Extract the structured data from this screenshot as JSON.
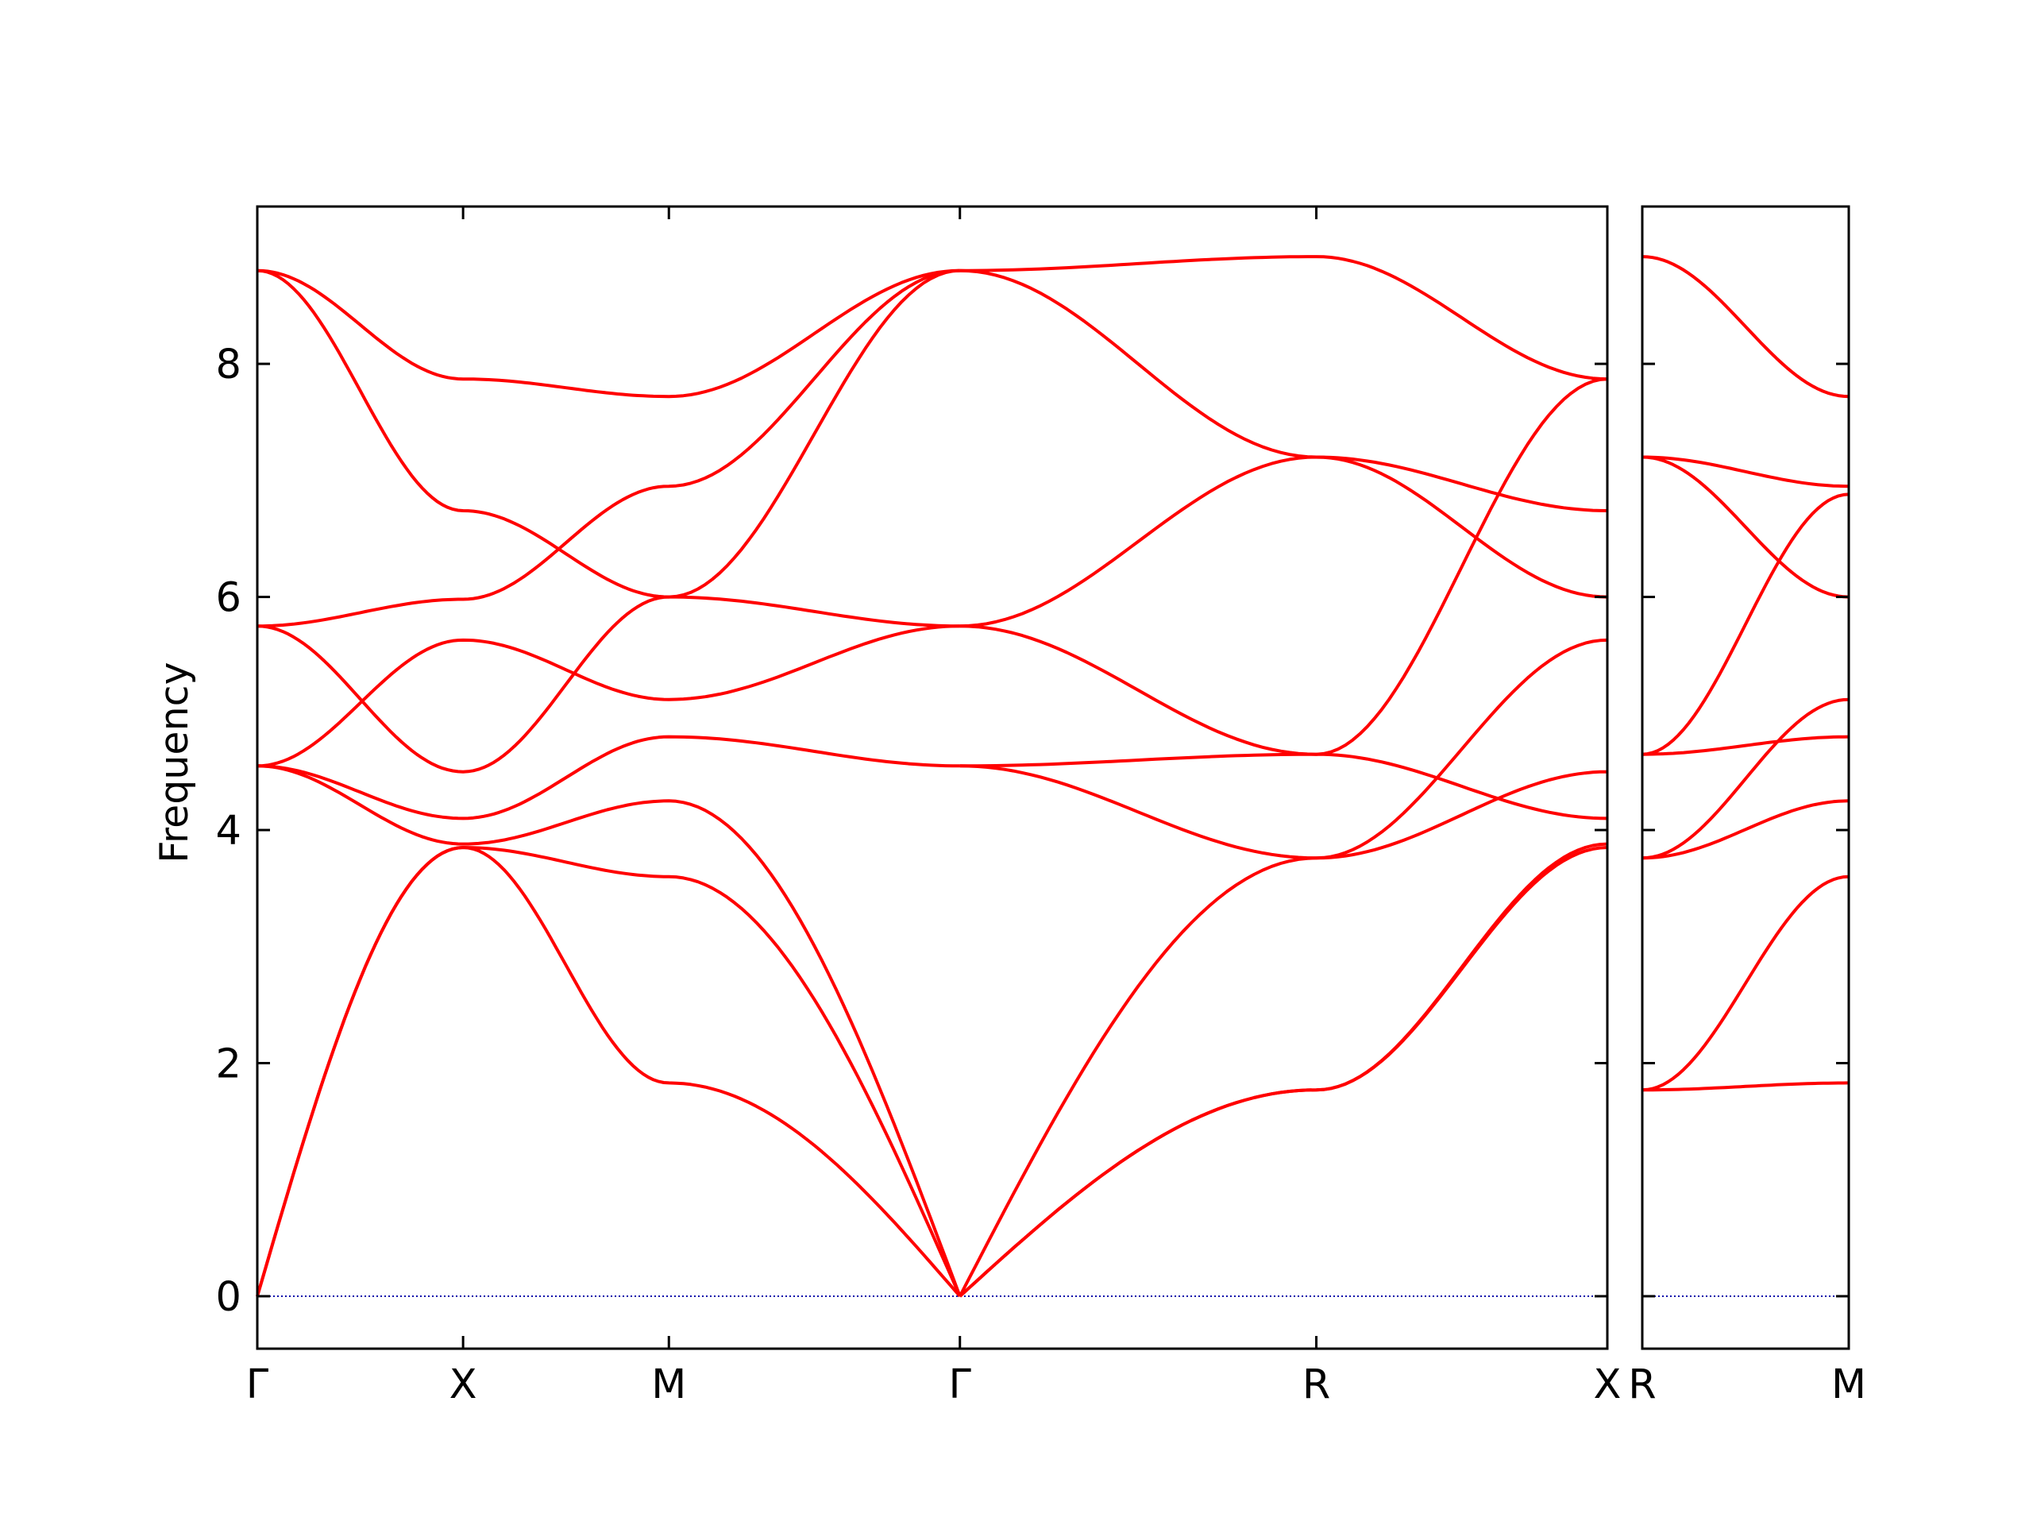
{
  "chart_data": {
    "type": "line",
    "ylabel": "Frequency",
    "ylim": [
      -0.45,
      9.35
    ],
    "yticks": [
      0,
      2,
      4,
      6,
      8
    ],
    "grid": false,
    "legend": "none",
    "colors": {
      "bands": "#ff0000",
      "zero_line": "#0000aa",
      "axes": "#000000"
    },
    "panels": [
      {
        "xticks": [
          {
            "label": "Γ",
            "x": 0
          },
          {
            "label": "X",
            "x": 0.5
          },
          {
            "label": "M",
            "x": 1.0
          },
          {
            "label": "Γ",
            "x": 1.7071
          },
          {
            "label": "R",
            "x": 2.5731
          },
          {
            "label": "X",
            "x": 3.2802
          }
        ],
        "xlim": [
          0,
          3.2802
        ],
        "series": [
          {
            "points": [
              [
                0,
                8.8
              ],
              [
                0.5,
                7.87
              ],
              [
                1.0,
                7.72
              ],
              [
                1.7071,
                8.8
              ]
            ]
          },
          {
            "points": [
              [
                0,
                8.8
              ],
              [
                0.5,
                6.74
              ],
              [
                1.0,
                6.0
              ],
              [
                1.7071,
                8.8
              ]
            ]
          },
          {
            "points": [
              [
                0,
                5.75
              ],
              [
                0.5,
                5.98
              ],
              [
                1.0,
                6.95
              ],
              [
                1.7071,
                8.8
              ]
            ]
          },
          {
            "points": [
              [
                0,
                5.75
              ],
              [
                0.5,
                4.5
              ],
              [
                1.0,
                6.0
              ],
              [
                1.7071,
                5.75
              ]
            ]
          },
          {
            "points": [
              [
                0,
                4.55
              ],
              [
                0.5,
                5.63
              ],
              [
                1.0,
                5.12
              ],
              [
                1.7071,
                5.75
              ]
            ]
          },
          {
            "points": [
              [
                0,
                4.55
              ],
              [
                0.5,
                4.1
              ],
              [
                1.0,
                4.8
              ],
              [
                1.7071,
                4.55
              ]
            ]
          },
          {
            "points": [
              [
                0,
                4.55
              ],
              [
                0.5,
                3.88
              ],
              [
                1.0,
                4.25
              ],
              [
                1.7071,
                0
              ]
            ]
          },
          {
            "points": [
              [
                0,
                0
              ],
              [
                0.5,
                3.85
              ],
              [
                1.0,
                3.6
              ],
              [
                1.7071,
                0
              ]
            ]
          },
          {
            "points": [
              [
                0,
                0
              ],
              [
                0.5,
                3.85
              ],
              [
                1.0,
                1.83
              ],
              [
                1.7071,
                0
              ]
            ]
          },
          {
            "points": [
              [
                1.7071,
                8.8
              ],
              [
                2.5731,
                8.92
              ],
              [
                3.2802,
                7.87
              ]
            ]
          },
          {
            "points": [
              [
                1.7071,
                8.8
              ],
              [
                2.5731,
                7.2
              ],
              [
                3.2802,
                6.0
              ]
            ]
          },
          {
            "points": [
              [
                1.7071,
                5.75
              ],
              [
                2.5731,
                7.2
              ],
              [
                3.2802,
                6.74
              ]
            ]
          },
          {
            "points": [
              [
                1.7071,
                5.75
              ],
              [
                2.5731,
                4.65
              ],
              [
                3.2802,
                4.1
              ]
            ]
          },
          {
            "points": [
              [
                1.7071,
                4.55
              ],
              [
                2.5731,
                4.65
              ],
              [
                3.2802,
                7.87
              ]
            ]
          },
          {
            "points": [
              [
                1.7071,
                4.55
              ],
              [
                2.5731,
                3.76
              ],
              [
                3.2802,
                5.63
              ]
            ]
          },
          {
            "points": [
              [
                1.7071,
                0
              ],
              [
                2.5731,
                3.76
              ],
              [
                3.2802,
                4.5
              ]
            ]
          },
          {
            "points": [
              [
                1.7071,
                0
              ],
              [
                2.5731,
                1.77
              ],
              [
                3.2802,
                3.88
              ]
            ]
          },
          {
            "points": [
              [
                1.7071,
                0
              ],
              [
                2.5731,
                1.77
              ],
              [
                3.2802,
                3.85
              ]
            ]
          }
        ]
      },
      {
        "xticks": [
          {
            "label": "R",
            "x": 0
          },
          {
            "label": "M",
            "x": 0.5
          }
        ],
        "xlim": [
          0,
          0.5
        ],
        "series": [
          {
            "points": [
              [
                0,
                8.92
              ],
              [
                0.5,
                7.72
              ]
            ]
          },
          {
            "points": [
              [
                0,
                7.2
              ],
              [
                0.5,
                6.95
              ]
            ]
          },
          {
            "points": [
              [
                0,
                7.2
              ],
              [
                0.5,
                6.0
              ]
            ]
          },
          {
            "points": [
              [
                0,
                4.65
              ],
              [
                0.5,
                6.88
              ]
            ]
          },
          {
            "points": [
              [
                0,
                4.65
              ],
              [
                0.5,
                4.8
              ]
            ]
          },
          {
            "points": [
              [
                0,
                3.76
              ],
              [
                0.5,
                5.12
              ]
            ]
          },
          {
            "points": [
              [
                0,
                3.76
              ],
              [
                0.5,
                4.25
              ]
            ]
          },
          {
            "points": [
              [
                0,
                1.77
              ],
              [
                0.5,
                3.6
              ]
            ]
          },
          {
            "points": [
              [
                0,
                1.77
              ],
              [
                0.5,
                1.83
              ]
            ]
          }
        ]
      }
    ]
  }
}
